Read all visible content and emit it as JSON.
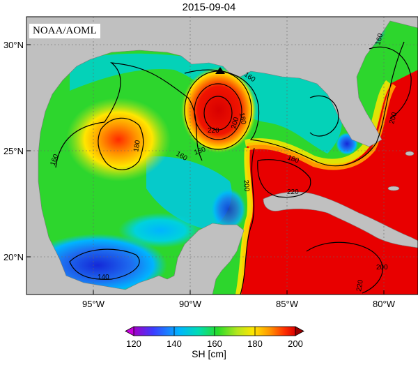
{
  "title": "2015-09-04",
  "credit": "NOAA/AOML",
  "map": {
    "lon_ticks": [
      {
        "value": -95,
        "label": "95°W"
      },
      {
        "value": -90,
        "label": "90°W"
      },
      {
        "value": -85,
        "label": "85°W"
      },
      {
        "value": -80,
        "label": "80°W"
      }
    ],
    "lat_ticks": [
      {
        "value": 30,
        "label": "30°N"
      },
      {
        "value": 25,
        "label": "25°N"
      },
      {
        "value": 20,
        "label": "20°N"
      }
    ],
    "contour_labels": [
      "140",
      "160",
      "180",
      "200",
      "220"
    ],
    "marker": "triangle-marker",
    "colors": {
      "land": "#c0c0c0",
      "low": "#1b2fe0",
      "mid": "#2dd62d",
      "high": "#e80000"
    }
  },
  "colorbar": {
    "title": "SH [cm]",
    "min": 120,
    "max": 200,
    "tick_labels": [
      "120",
      "140",
      "160",
      "180",
      "200"
    ],
    "colors": [
      "#a000c8",
      "#3c3cff",
      "#00b4ff",
      "#00dcb4",
      "#28dc28",
      "#b4e61e",
      "#ffe600",
      "#ff9600",
      "#ff3200",
      "#dc0000"
    ]
  }
}
